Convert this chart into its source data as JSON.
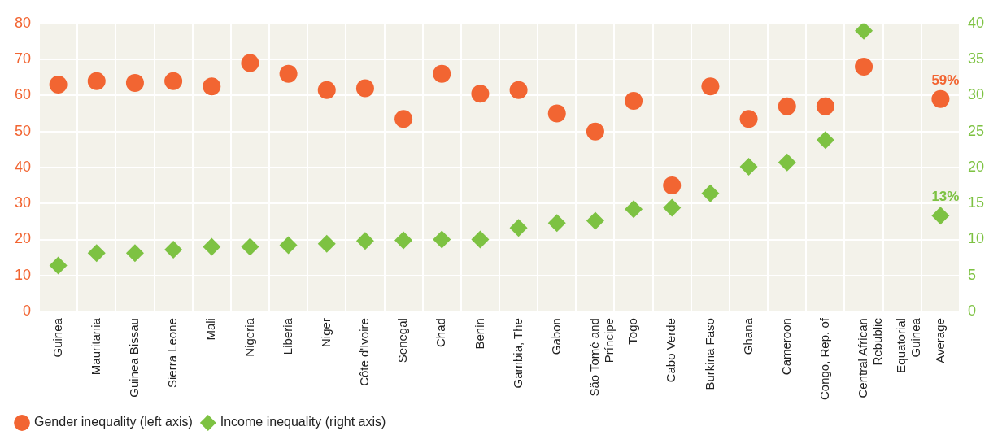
{
  "chart_data": {
    "type": "scatter",
    "categories": [
      "Guinea",
      "Mauritania",
      "Guinea Bissau",
      "Sierra Leone",
      "Mali",
      "Nigeria",
      "Liberia",
      "Niger",
      "Côte d'Ivoire",
      "Senegal",
      "Chad",
      "Benin",
      "Gambia, The",
      "Gabon",
      "São Tomé and Príncipe",
      "Togo",
      "Cabo Verde",
      "Burkina Faso",
      "Ghana",
      "Cameroon",
      "Congo, Rep. of",
      "Central African Rebublic",
      "Equatorial Guinea",
      "Average"
    ],
    "series": [
      {
        "name": "Gender inequality (left axis)",
        "color": "#f26532",
        "marker": "circle",
        "values": [
          63,
          64,
          63.5,
          64,
          62.5,
          69,
          66,
          61.5,
          62,
          53.5,
          66,
          60.5,
          61.5,
          55,
          50,
          58.5,
          35,
          62.5,
          53.5,
          57,
          57,
          68,
          null,
          59
        ],
        "value_labels": [
          null,
          null,
          null,
          null,
          null,
          null,
          null,
          null,
          null,
          null,
          null,
          null,
          null,
          null,
          null,
          null,
          null,
          null,
          null,
          null,
          null,
          null,
          null,
          "59%"
        ]
      },
      {
        "name": "Income inequality (right axis)",
        "color": "#7dc242",
        "marker": "diamond",
        "axis": "y2",
        "values": [
          6.4,
          8.1,
          8.1,
          8.6,
          9,
          9,
          9.2,
          9.4,
          9.8,
          9.9,
          10,
          10,
          11.6,
          12.3,
          12.6,
          14.2,
          14.4,
          16.4,
          20.1,
          20.7,
          23.8,
          39,
          null,
          13.3
        ],
        "value_labels": [
          null,
          null,
          null,
          null,
          null,
          null,
          null,
          null,
          null,
          null,
          null,
          null,
          null,
          null,
          null,
          null,
          null,
          null,
          null,
          null,
          null,
          null,
          null,
          "13%"
        ]
      }
    ],
    "ylim": [
      0,
      80
    ],
    "yticks": [
      0,
      10,
      20,
      30,
      40,
      50,
      60,
      70,
      80
    ],
    "y2lim": [
      0,
      40
    ],
    "y2ticks": [
      0,
      5,
      10,
      15,
      20,
      25,
      30,
      35,
      40
    ],
    "grid": true,
    "legend": "bottom left"
  }
}
